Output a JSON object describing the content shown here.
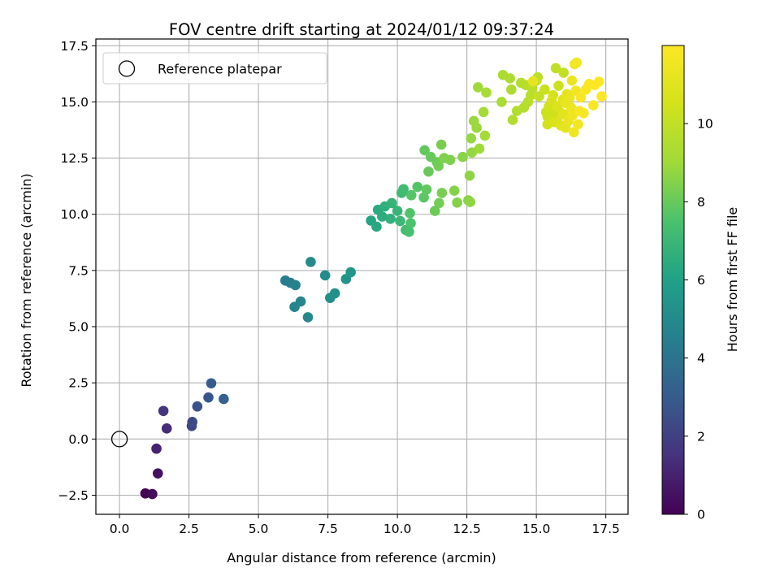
{
  "chart_data": {
    "type": "scatter",
    "title": "FOV centre drift starting at 2024/01/12 09:37:24",
    "xlabel": "Angular distance from reference (arcmin)",
    "ylabel": "Rotation from reference (arcmin)",
    "xlim": [
      -0.85,
      18.3
    ],
    "ylim": [
      -3.35,
      17.8
    ],
    "xticks": [
      0.0,
      2.5,
      5.0,
      7.5,
      10.0,
      12.5,
      15.0,
      17.5
    ],
    "xtick_labels": [
      "0.0",
      "2.5",
      "5.0",
      "7.5",
      "10.0",
      "12.5",
      "15.0",
      "17.5"
    ],
    "yticks": [
      -2.5,
      0.0,
      2.5,
      5.0,
      7.5,
      10.0,
      12.5,
      15.0,
      17.5
    ],
    "ytick_labels": [
      "−2.5",
      "0.0",
      "2.5",
      "5.0",
      "7.5",
      "10.0",
      "12.5",
      "15.0",
      "17.5"
    ],
    "grid": true,
    "legend": {
      "placement": "upper-left",
      "entries": [
        "Reference platepar"
      ]
    },
    "reference_point": {
      "x": 0.0,
      "y": 0.0
    },
    "colorbar": {
      "label": "Hours from first FF file",
      "range": [
        0,
        12
      ],
      "ticks": [
        0,
        2,
        4,
        6,
        8,
        10
      ],
      "tick_labels": [
        "0",
        "2",
        "4",
        "6",
        "8",
        "10"
      ],
      "colormap": "viridis"
    },
    "points": [
      {
        "x": 0.93,
        "y": -2.42,
        "c": 0.0
      },
      {
        "x": 1.18,
        "y": -2.45,
        "c": 0.3
      },
      {
        "x": 1.38,
        "y": -1.53,
        "c": 0.5
      },
      {
        "x": 1.33,
        "y": -0.43,
        "c": 1.0
      },
      {
        "x": 1.7,
        "y": 0.47,
        "c": 1.3
      },
      {
        "x": 1.58,
        "y": 1.25,
        "c": 1.6
      },
      {
        "x": 2.6,
        "y": 0.58,
        "c": 2.2
      },
      {
        "x": 2.62,
        "y": 0.76,
        "c": 2.4
      },
      {
        "x": 2.8,
        "y": 1.45,
        "c": 2.6
      },
      {
        "x": 3.2,
        "y": 1.85,
        "c": 2.8
      },
      {
        "x": 3.3,
        "y": 2.48,
        "c": 3.0
      },
      {
        "x": 3.75,
        "y": 1.78,
        "c": 3.2
      },
      {
        "x": 5.97,
        "y": 7.05,
        "c": 4.4
      },
      {
        "x": 6.15,
        "y": 6.95,
        "c": 4.5
      },
      {
        "x": 6.33,
        "y": 6.85,
        "c": 4.6
      },
      {
        "x": 6.3,
        "y": 5.88,
        "c": 4.7
      },
      {
        "x": 6.52,
        "y": 6.12,
        "c": 4.8
      },
      {
        "x": 6.78,
        "y": 5.42,
        "c": 4.9
      },
      {
        "x": 6.88,
        "y": 7.88,
        "c": 5.0
      },
      {
        "x": 7.4,
        "y": 7.28,
        "c": 5.1
      },
      {
        "x": 7.58,
        "y": 6.28,
        "c": 5.2
      },
      {
        "x": 7.75,
        "y": 6.48,
        "c": 5.3
      },
      {
        "x": 8.15,
        "y": 7.12,
        "c": 5.4
      },
      {
        "x": 8.32,
        "y": 7.42,
        "c": 5.5
      },
      {
        "x": 9.05,
        "y": 9.72,
        "c": 6.2
      },
      {
        "x": 9.25,
        "y": 9.45,
        "c": 6.3
      },
      {
        "x": 9.3,
        "y": 10.2,
        "c": 6.4
      },
      {
        "x": 9.45,
        "y": 9.9,
        "c": 6.5
      },
      {
        "x": 9.55,
        "y": 10.35,
        "c": 6.6
      },
      {
        "x": 9.75,
        "y": 9.8,
        "c": 6.7
      },
      {
        "x": 9.8,
        "y": 10.5,
        "c": 6.8
      },
      {
        "x": 10.0,
        "y": 10.15,
        "c": 6.9
      },
      {
        "x": 10.1,
        "y": 9.7,
        "c": 7.0
      },
      {
        "x": 10.15,
        "y": 10.95,
        "c": 7.1
      },
      {
        "x": 10.22,
        "y": 11.12,
        "c": 7.2
      },
      {
        "x": 10.3,
        "y": 9.3,
        "c": 7.3
      },
      {
        "x": 10.42,
        "y": 9.22,
        "c": 7.4
      },
      {
        "x": 10.48,
        "y": 9.6,
        "c": 7.5
      },
      {
        "x": 10.45,
        "y": 10.05,
        "c": 7.6
      },
      {
        "x": 10.5,
        "y": 10.85,
        "c": 7.7
      },
      {
        "x": 10.72,
        "y": 11.22,
        "c": 7.7
      },
      {
        "x": 10.95,
        "y": 10.75,
        "c": 7.8
      },
      {
        "x": 10.98,
        "y": 12.85,
        "c": 7.9
      },
      {
        "x": 11.05,
        "y": 11.1,
        "c": 7.9
      },
      {
        "x": 11.12,
        "y": 11.9,
        "c": 8.0
      },
      {
        "x": 11.2,
        "y": 12.55,
        "c": 8.0
      },
      {
        "x": 11.35,
        "y": 10.15,
        "c": 8.1
      },
      {
        "x": 11.42,
        "y": 12.32,
        "c": 8.1
      },
      {
        "x": 11.48,
        "y": 12.15,
        "c": 8.2
      },
      {
        "x": 11.5,
        "y": 10.5,
        "c": 8.2
      },
      {
        "x": 11.58,
        "y": 13.1,
        "c": 8.3
      },
      {
        "x": 11.6,
        "y": 10.95,
        "c": 8.3
      },
      {
        "x": 11.68,
        "y": 12.5,
        "c": 8.4
      },
      {
        "x": 11.9,
        "y": 12.42,
        "c": 8.4
      },
      {
        "x": 12.05,
        "y": 11.05,
        "c": 8.5
      },
      {
        "x": 12.15,
        "y": 10.52,
        "c": 8.5
      },
      {
        "x": 12.35,
        "y": 12.55,
        "c": 8.6
      },
      {
        "x": 12.55,
        "y": 10.62,
        "c": 8.6
      },
      {
        "x": 12.6,
        "y": 11.72,
        "c": 8.7
      },
      {
        "x": 12.62,
        "y": 10.55,
        "c": 8.7
      },
      {
        "x": 12.65,
        "y": 13.38,
        "c": 8.8
      },
      {
        "x": 12.68,
        "y": 12.75,
        "c": 8.8
      },
      {
        "x": 12.75,
        "y": 14.15,
        "c": 8.9
      },
      {
        "x": 12.85,
        "y": 13.85,
        "c": 8.9
      },
      {
        "x": 12.95,
        "y": 12.92,
        "c": 9.0
      },
      {
        "x": 12.9,
        "y": 15.65,
        "c": 9.0
      },
      {
        "x": 13.1,
        "y": 14.55,
        "c": 9.1
      },
      {
        "x": 13.15,
        "y": 13.5,
        "c": 9.1
      },
      {
        "x": 13.2,
        "y": 15.42,
        "c": 9.2
      },
      {
        "x": 13.75,
        "y": 15.0,
        "c": 9.3
      },
      {
        "x": 13.8,
        "y": 16.2,
        "c": 9.3
      },
      {
        "x": 14.05,
        "y": 16.05,
        "c": 9.4
      },
      {
        "x": 14.1,
        "y": 15.55,
        "c": 9.4
      },
      {
        "x": 14.15,
        "y": 14.2,
        "c": 9.5
      },
      {
        "x": 14.3,
        "y": 14.6,
        "c": 9.5
      },
      {
        "x": 14.45,
        "y": 15.85,
        "c": 9.6
      },
      {
        "x": 14.55,
        "y": 14.75,
        "c": 9.6
      },
      {
        "x": 14.62,
        "y": 15.75,
        "c": 9.7
      },
      {
        "x": 14.7,
        "y": 15.0,
        "c": 9.7
      },
      {
        "x": 14.8,
        "y": 15.3,
        "c": 9.8
      },
      {
        "x": 14.85,
        "y": 15.6,
        "c": 9.8
      },
      {
        "x": 15.0,
        "y": 15.95,
        "c": 9.9
      },
      {
        "x": 15.05,
        "y": 16.1,
        "c": 9.9
      },
      {
        "x": 14.88,
        "y": 15.92,
        "c": 11.2
      },
      {
        "x": 15.1,
        "y": 15.25,
        "c": 10.1
      },
      {
        "x": 15.3,
        "y": 15.55,
        "c": 10.2
      },
      {
        "x": 15.35,
        "y": 14.55,
        "c": 10.3
      },
      {
        "x": 15.4,
        "y": 14.35,
        "c": 10.4
      },
      {
        "x": 15.4,
        "y": 14.0,
        "c": 10.5
      },
      {
        "x": 15.45,
        "y": 14.8,
        "c": 10.5
      },
      {
        "x": 15.55,
        "y": 15.05,
        "c": 10.6
      },
      {
        "x": 15.6,
        "y": 15.3,
        "c": 10.6
      },
      {
        "x": 15.65,
        "y": 14.1,
        "c": 10.7
      },
      {
        "x": 15.7,
        "y": 16.5,
        "c": 10.0
      },
      {
        "x": 15.75,
        "y": 14.25,
        "c": 10.8
      },
      {
        "x": 15.8,
        "y": 15.72,
        "c": 10.3
      },
      {
        "x": 15.85,
        "y": 14.55,
        "c": 10.9
      },
      {
        "x": 15.88,
        "y": 13.95,
        "c": 11.0
      },
      {
        "x": 15.95,
        "y": 15.1,
        "c": 11.0
      },
      {
        "x": 15.98,
        "y": 16.3,
        "c": 10.1
      },
      {
        "x": 16.0,
        "y": 14.45,
        "c": 11.1
      },
      {
        "x": 16.05,
        "y": 13.85,
        "c": 11.2
      },
      {
        "x": 16.1,
        "y": 15.35,
        "c": 11.2
      },
      {
        "x": 16.15,
        "y": 14.15,
        "c": 11.3
      },
      {
        "x": 16.2,
        "y": 15.2,
        "c": 11.3
      },
      {
        "x": 16.25,
        "y": 14.75,
        "c": 11.4
      },
      {
        "x": 16.28,
        "y": 15.95,
        "c": 11.4
      },
      {
        "x": 16.3,
        "y": 14.4,
        "c": 11.5
      },
      {
        "x": 16.35,
        "y": 13.65,
        "c": 11.5
      },
      {
        "x": 16.38,
        "y": 16.68,
        "c": 11.6
      },
      {
        "x": 16.45,
        "y": 16.75,
        "c": 11.7
      },
      {
        "x": 16.42,
        "y": 15.5,
        "c": 11.6
      },
      {
        "x": 16.5,
        "y": 14.0,
        "c": 11.7
      },
      {
        "x": 16.55,
        "y": 14.6,
        "c": 11.8
      },
      {
        "x": 16.6,
        "y": 15.2,
        "c": 11.8
      },
      {
        "x": 16.7,
        "y": 14.5,
        "c": 11.8
      },
      {
        "x": 16.78,
        "y": 15.55,
        "c": 11.9
      },
      {
        "x": 16.9,
        "y": 15.8,
        "c": 11.9
      },
      {
        "x": 17.05,
        "y": 14.85,
        "c": 11.9
      },
      {
        "x": 17.1,
        "y": 15.75,
        "c": 12.0
      },
      {
        "x": 17.25,
        "y": 15.9,
        "c": 12.0
      },
      {
        "x": 17.35,
        "y": 15.25,
        "c": 12.0
      },
      {
        "x": 15.6,
        "y": 14.5,
        "c": 10.4
      },
      {
        "x": 15.75,
        "y": 14.8,
        "c": 10.8
      },
      {
        "x": 16.05,
        "y": 14.95,
        "c": 11.3
      }
    ]
  }
}
